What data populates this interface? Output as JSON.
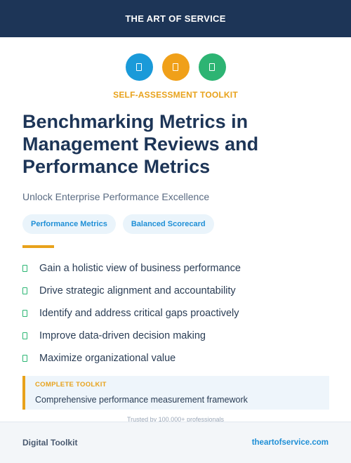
{
  "header": {
    "brand": "THE ART OF SERVICE"
  },
  "icons": [
    {
      "name": "document-icon-blue",
      "color": "#1a9ad9"
    },
    {
      "name": "document-icon-orange",
      "color": "#f0a019"
    },
    {
      "name": "document-icon-green",
      "color": "#2db473"
    }
  ],
  "kicker": "SELF-ASSESSMENT TOOLKIT",
  "title": "Benchmarking Metrics in Management Reviews and Performance Metrics",
  "subtitle": "Unlock Enterprise Performance Excellence",
  "tags": [
    "Performance Metrics",
    "Balanced Scorecard"
  ],
  "benefits": [
    "Gain a holistic view of business performance",
    "Drive strategic alignment and accountability",
    "Identify and address critical gaps proactively",
    "Improve data-driven decision making",
    "Maximize organizational value"
  ],
  "toolkit": {
    "label": "COMPLETE TOOLKIT",
    "description": "Comprehensive performance measurement framework"
  },
  "trusted": "Trusted by 100,000+ professionals",
  "footer": {
    "left": "Digital Toolkit",
    "right": "theartofservice.com"
  },
  "colors": {
    "navy": "#1d3557",
    "accent": "#e8a21b",
    "link": "#1f8fd6",
    "check": "#2bb673"
  }
}
